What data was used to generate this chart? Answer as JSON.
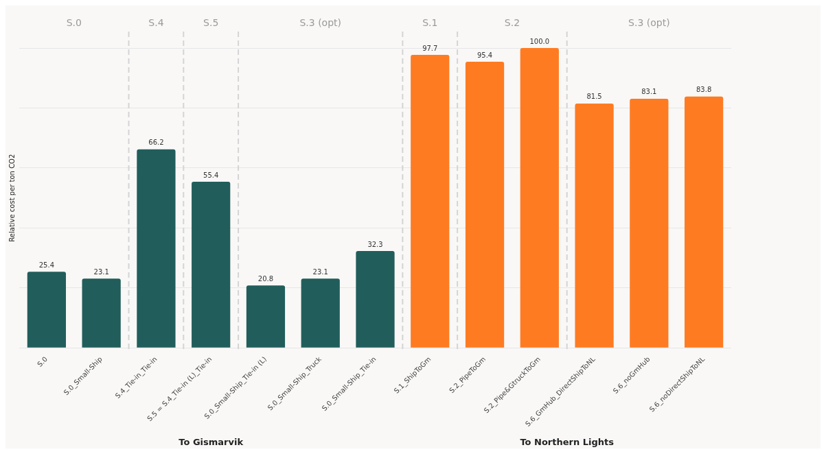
{
  "chart_data": {
    "type": "bar",
    "ylabel": "Relative cost per ton CO2",
    "categories": [
      "S.0",
      "S.0_Small-Ship",
      "S.4_Tie-in_Tie-in",
      "S.5 = S.4_Tie-in (L)_Tie-in",
      "S.0_Small-Ship_Tie-in (L)",
      "S.0_Small-Ship_Truck",
      "S.0_Small-Ship_Tie-in",
      "S.1_ShipToGm",
      "S.2_PipeToGm",
      "S.2_Pipe&GtruckToGm",
      "S.6_GmHub_DirectShipToNL",
      "S.6_noGmHub",
      "S.6_noDirectShipToNL"
    ],
    "values": [
      25.4,
      23.1,
      66.2,
      55.4,
      20.8,
      23.1,
      32.3,
      97.7,
      95.4,
      100.0,
      81.5,
      83.1,
      83.8
    ],
    "value_labels": [
      "25.4",
      "23.1",
      "66.2",
      "55.4",
      "20.8",
      "23.1",
      "32.3",
      "97.7",
      "95.4",
      "100.0",
      "81.5",
      "83.1",
      "83.8"
    ],
    "colors": [
      "#215e5b",
      "#215e5b",
      "#215e5b",
      "#215e5b",
      "#215e5b",
      "#215e5b",
      "#215e5b",
      "#ff7b22",
      "#ff7b22",
      "#ff7b22",
      "#ff7b22",
      "#ff7b22",
      "#ff7b22"
    ],
    "ylim": [
      0,
      100
    ],
    "yticks": [
      {
        "value": 0,
        "label": null
      },
      {
        "value": 20,
        "label": null
      },
      {
        "value": 40,
        "label": null
      },
      {
        "value": 60,
        "label": null
      },
      {
        "value": 80,
        "label": null
      },
      {
        "value": 100,
        "label": null
      }
    ],
    "grid": "y",
    "tick_labels": "x",
    "annotations": [
      "S.0",
      "S.4",
      "S.5",
      "S.3 (opt)",
      "S.1",
      "S.2",
      "S.3 (opt)",
      "To Gismarvik",
      "To Northern Lights"
    ]
  }
}
